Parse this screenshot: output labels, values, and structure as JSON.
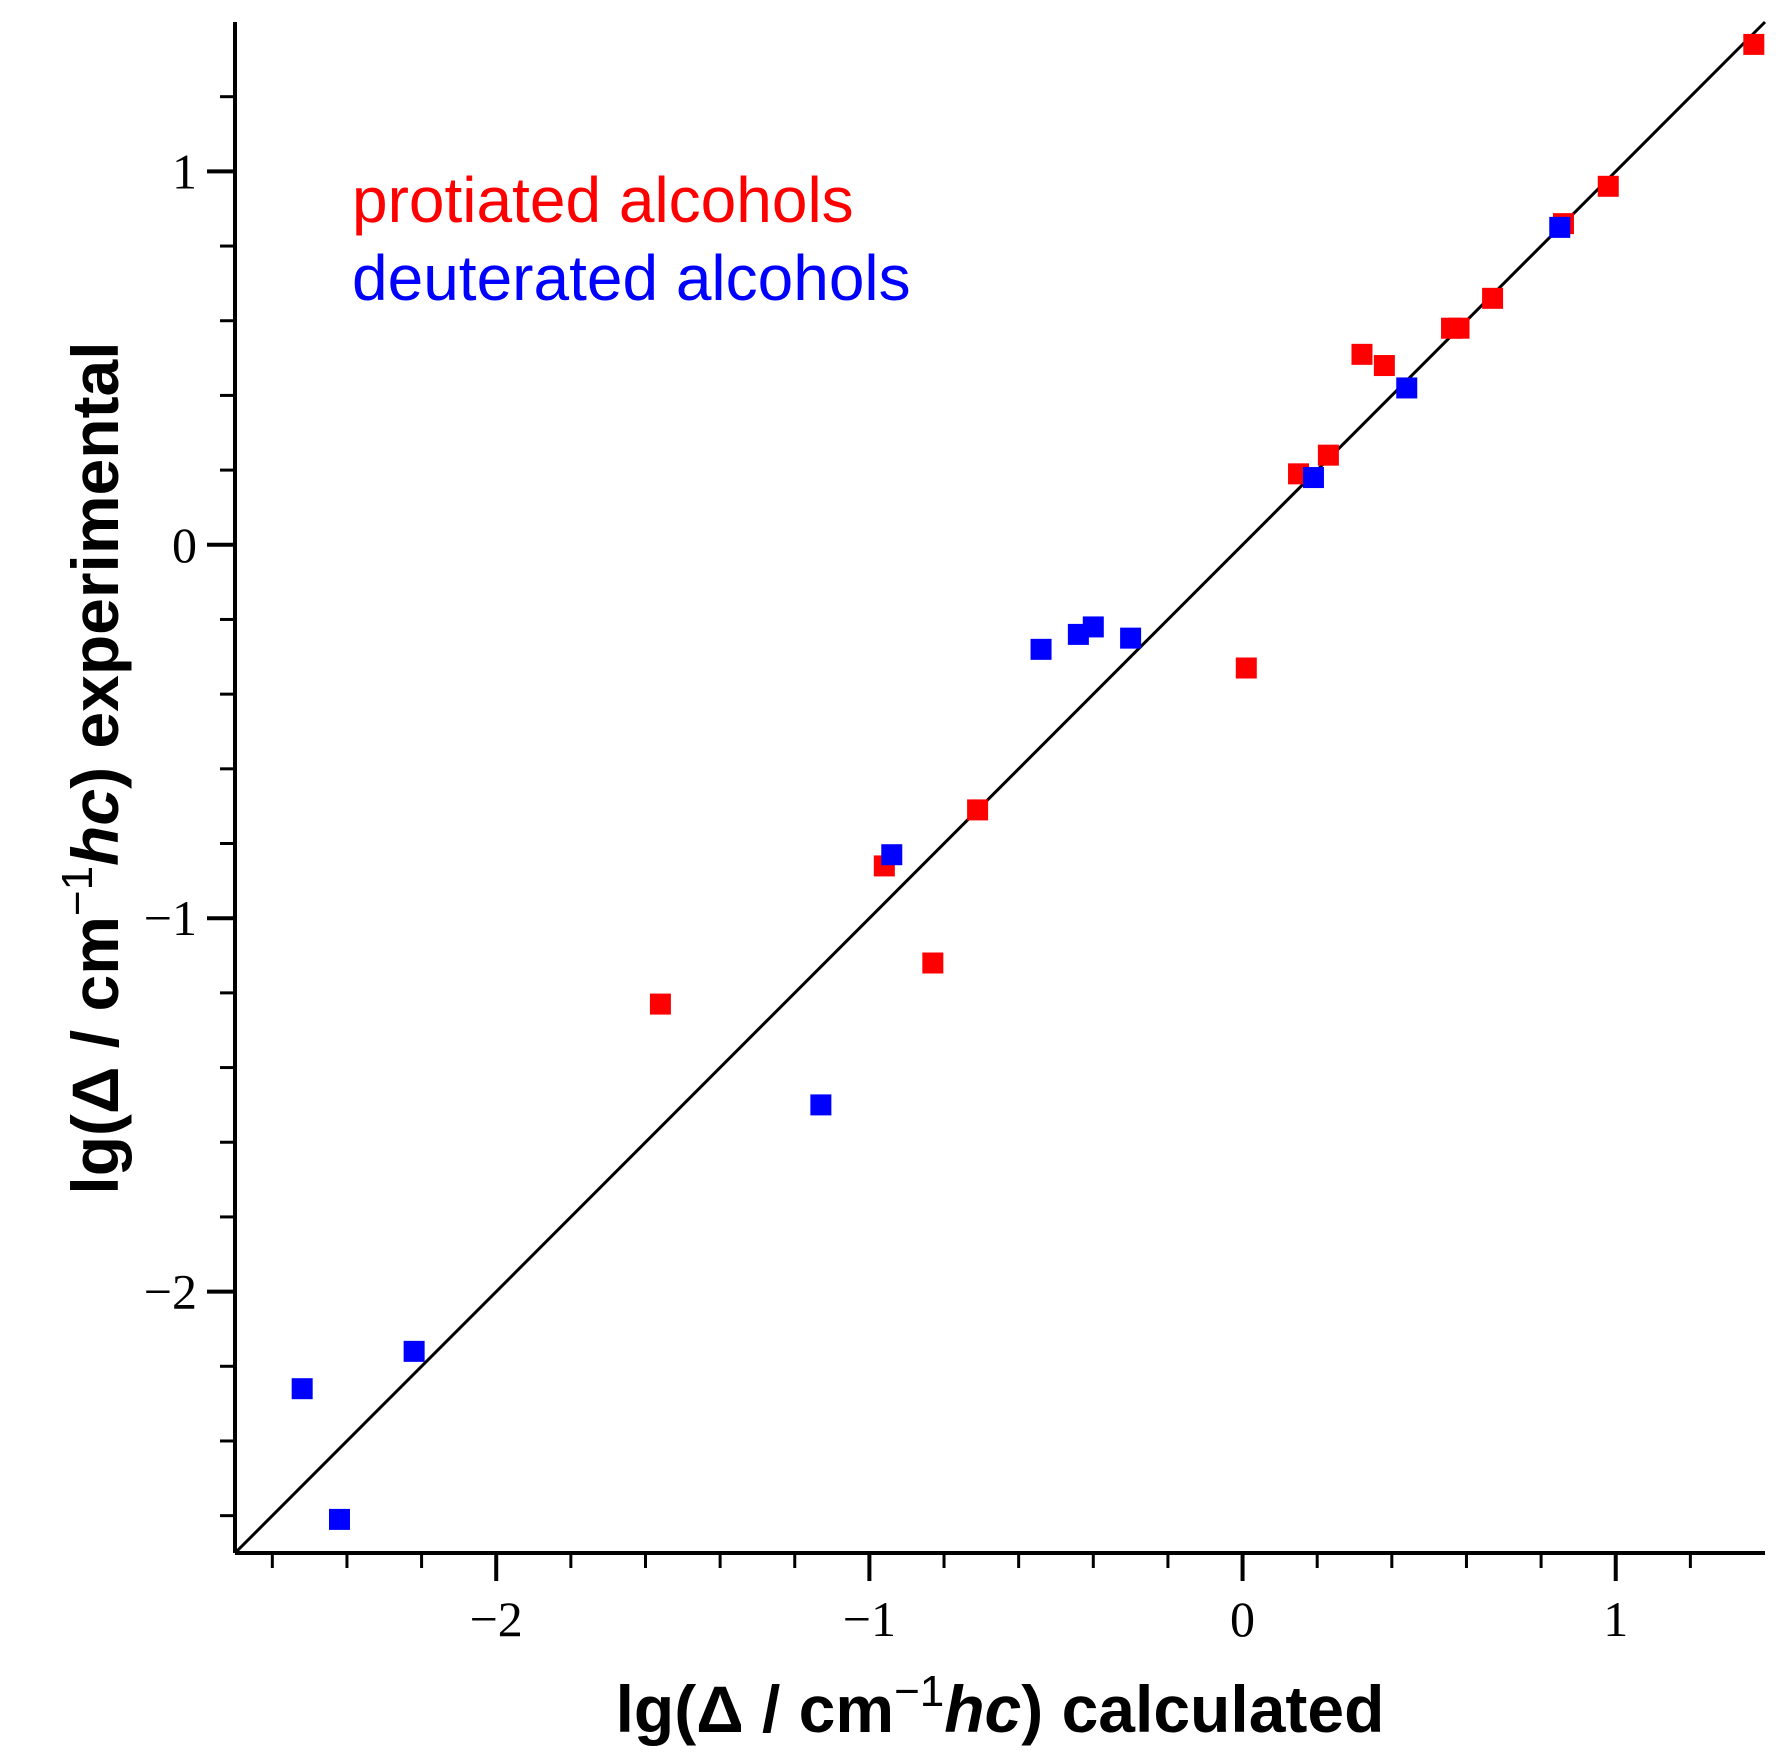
{
  "chart_data": {
    "type": "scatter",
    "xlabel": {
      "prefix": "lg(Δ / cm",
      "sup": "−1",
      "ital": "hc",
      "suffix": ") calculated"
    },
    "ylabel": {
      "prefix": "lg(Δ / cm",
      "sup": "−1",
      "ital": "hc",
      "suffix": ") experimental"
    },
    "xlim": [
      -2.7,
      1.4
    ],
    "ylim": [
      -2.7,
      1.4
    ],
    "x_major_ticks": [
      -2,
      -1,
      0,
      1
    ],
    "x_minor_ticks": [
      -2.6,
      -2.4,
      -2.2,
      -1.8,
      -1.6,
      -1.4,
      -1.2,
      -0.8,
      -0.6,
      -0.4,
      -0.2,
      0.2,
      0.4,
      0.6,
      0.8,
      1.2
    ],
    "y_major_ticks": [
      -2,
      -1,
      0,
      1
    ],
    "y_minor_ticks": [
      -2.6,
      -2.4,
      -2.2,
      -1.8,
      -1.6,
      -1.4,
      -1.2,
      -0.8,
      -0.6,
      -0.4,
      -0.2,
      0.2,
      0.4,
      0.6,
      0.8,
      1.2
    ],
    "tick_labels": {
      "-2": "−2",
      "-1": "−1",
      "0": "0",
      "1": "1"
    },
    "reference_line": {
      "from": [
        -2.7,
        -2.7
      ],
      "to": [
        1.4,
        1.4
      ],
      "color": "#000000"
    },
    "series": [
      {
        "name": "protiated alcohols",
        "color": "#ff0000",
        "points": [
          [
            -1.56,
            -1.23
          ],
          [
            -0.96,
            -0.86
          ],
          [
            -0.83,
            -1.12
          ],
          [
            -0.71,
            -0.71
          ],
          [
            0.01,
            -0.33
          ],
          [
            0.15,
            0.19
          ],
          [
            0.23,
            0.24
          ],
          [
            0.32,
            0.51
          ],
          [
            0.38,
            0.48
          ],
          [
            0.56,
            0.58
          ],
          [
            0.58,
            0.58
          ],
          [
            0.67,
            0.66
          ],
          [
            0.86,
            0.86
          ],
          [
            0.98,
            0.96
          ],
          [
            1.37,
            1.34
          ]
        ]
      },
      {
        "name": "deuterated alcohols",
        "color": "#0000ff",
        "points": [
          [
            -2.52,
            -2.26
          ],
          [
            -2.42,
            -2.61
          ],
          [
            -2.22,
            -2.16
          ],
          [
            -1.13,
            -1.5
          ],
          [
            -0.94,
            -0.83
          ],
          [
            -0.54,
            -0.28
          ],
          [
            -0.44,
            -0.24
          ],
          [
            -0.4,
            -0.22
          ],
          [
            -0.3,
            -0.25
          ],
          [
            0.19,
            0.18
          ],
          [
            0.44,
            0.42
          ],
          [
            0.85,
            0.85
          ]
        ]
      }
    ],
    "legend": {
      "placement": "top-left",
      "style": "colored text"
    }
  }
}
